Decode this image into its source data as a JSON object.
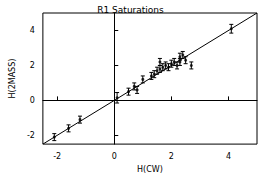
{
  "chart_data": {
    "type": "scatter",
    "title": "R1 Saturations",
    "x_label": "H(CW)",
    "y_label": "H(2MASS)",
    "x": [
      -2.1,
      -1.6,
      -1.2,
      0.1,
      0.5,
      0.7,
      0.8,
      1.0,
      1.3,
      1.4,
      1.5,
      1.6,
      1.7,
      1.8,
      1.9,
      2.0,
      2.1,
      2.2,
      2.3,
      2.3,
      2.4,
      2.5,
      2.7,
      4.1,
      1.6
    ],
    "values": [
      -2.1,
      -1.6,
      -1.1,
      0.15,
      0.5,
      0.8,
      0.6,
      1.2,
      1.4,
      1.5,
      1.7,
      1.8,
      1.9,
      2.0,
      1.9,
      2.1,
      2.2,
      2.0,
      2.2,
      2.5,
      2.6,
      2.3,
      2.0,
      4.1,
      2.2
    ],
    "errors": [
      0.2,
      0.2,
      0.2,
      0.3,
      0.2,
      0.2,
      0.2,
      0.2,
      0.2,
      0.2,
      0.2,
      0.2,
      0.2,
      0.2,
      0.2,
      0.2,
      0.2,
      0.2,
      0.2,
      0.2,
      0.2,
      0.2,
      0.2,
      0.25,
      0.2
    ],
    "reference_line": {
      "x": [
        -2.5,
        5
      ],
      "y": [
        -2.5,
        5
      ]
    },
    "color": "#000000",
    "marker": "circle",
    "xlim": [
      -2.5,
      5
    ],
    "xticks": [
      -2,
      0,
      2,
      4
    ],
    "ylim": [
      -2.5,
      5
    ],
    "yticks": [
      -2,
      0,
      2,
      4
    ],
    "grid": false
  }
}
